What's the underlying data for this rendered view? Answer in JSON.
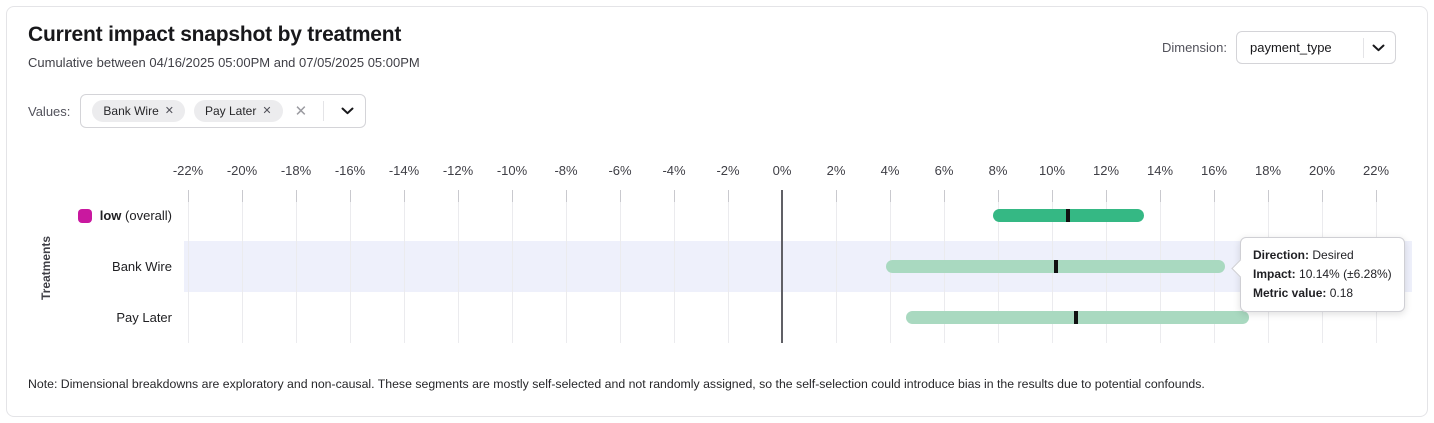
{
  "header": {
    "title": "Current impact snapshot by treatment",
    "subtitle": "Cumulative between 04/16/2025 05:00PM and 07/05/2025 05:00PM",
    "dimension_label": "Dimension:",
    "dimension_value": "payment_type"
  },
  "filters": {
    "label": "Values:",
    "chips": [
      {
        "label": "Bank Wire"
      },
      {
        "label": "Pay Later"
      }
    ]
  },
  "icons": {
    "chip_remove_glyph": "✕",
    "clear_glyph": "✕"
  },
  "chart_data": {
    "type": "bar",
    "subtype": "horizontal_range_bars_with_point_estimate",
    "title": "Current impact snapshot by treatment",
    "xlabel": "",
    "ylabel": "Treatments",
    "x_axis": {
      "unit": "%",
      "min": -22,
      "max": 22,
      "step": 2,
      "tick_labels": [
        "-22%",
        "-20%",
        "-18%",
        "-16%",
        "-14%",
        "-12%",
        "-10%",
        "-8%",
        "-6%",
        "-4%",
        "-2%",
        "0%",
        "2%",
        "4%",
        "6%",
        "8%",
        "10%",
        "12%",
        "14%",
        "16%",
        "18%",
        "20%",
        "22%"
      ]
    },
    "grid": true,
    "zero_line_color": "#606066",
    "highlight_row_color": "#eef0fb",
    "rows": [
      {
        "label_bold": "low",
        "label_suffix": "(overall)",
        "swatch_color": "#c9189f",
        "bar_color": "#35b884",
        "marker_color": "#111111",
        "impact_pct": 10.6,
        "ci_low_pct": 7.8,
        "ci_high_pct": 13.4,
        "highlighted": false
      },
      {
        "label": "Bank Wire",
        "bar_color": "#a9d9c0",
        "marker_color": "#111111",
        "impact_pct": 10.14,
        "ci_low_pct": 3.86,
        "ci_high_pct": 16.42,
        "highlighted": true
      },
      {
        "label": "Pay Later",
        "bar_color": "#a9d9c0",
        "marker_color": "#111111",
        "impact_pct": 10.9,
        "ci_low_pct": 4.6,
        "ci_high_pct": 17.3,
        "highlighted": false
      }
    ]
  },
  "tooltip": {
    "direction_label": "Direction:",
    "direction_value": "Desired",
    "impact_label": "Impact:",
    "impact_value": "10.14% (±6.28%)",
    "metric_label": "Metric value:",
    "metric_value": "0.18"
  },
  "note": "Note: Dimensional breakdowns are exploratory and non-causal. These segments are mostly self-selected and not randomly assigned, so the self-selection could introduce bias in the results due to potential confounds."
}
